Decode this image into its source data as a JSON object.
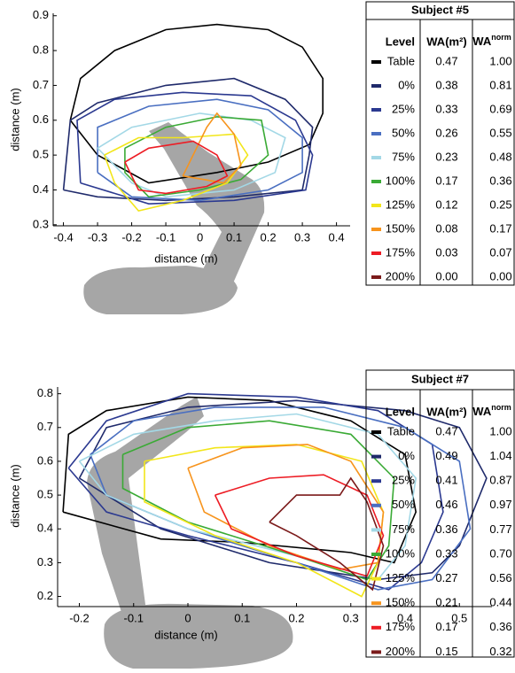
{
  "chart_data": [
    {
      "type": "line",
      "x_label": "distance (m)",
      "y_label": "distance (m)",
      "xlim": [
        -0.43,
        0.44
      ],
      "ylim": [
        0.297,
        0.907
      ],
      "xticks": [
        -0.4,
        -0.3,
        -0.2,
        -0.1,
        0,
        0.1,
        0.2,
        0.3,
        0.4
      ],
      "yticks": [
        0.3,
        0.4,
        0.5,
        0.6,
        0.7,
        0.8,
        0.9
      ],
      "series": [
        {
          "name": "Table",
          "color": "#000000",
          "x": [
            -0.38,
            -0.35,
            -0.25,
            -0.1,
            0.05,
            0.2,
            0.3,
            0.36,
            0.36,
            0.32,
            0.2,
            0.05,
            -0.15,
            -0.3,
            -0.38
          ],
          "y": [
            0.6,
            0.72,
            0.8,
            0.86,
            0.875,
            0.86,
            0.81,
            0.72,
            0.62,
            0.53,
            0.48,
            0.45,
            0.42,
            0.5,
            0.6
          ]
        },
        {
          "name": "0%",
          "color": "#1f2a6b",
          "x": [
            -0.4,
            -0.38,
            -0.3,
            -0.1,
            0.1,
            0.25,
            0.33,
            0.32,
            0.3,
            0.1,
            -0.1,
            -0.3,
            -0.4
          ],
          "y": [
            0.4,
            0.6,
            0.65,
            0.7,
            0.72,
            0.66,
            0.58,
            0.5,
            0.4,
            0.38,
            0.37,
            0.38,
            0.4
          ]
        },
        {
          "name": "25%",
          "color": "#2b3990",
          "x": [
            -0.35,
            -0.36,
            -0.25,
            -0.05,
            0.15,
            0.28,
            0.33,
            0.31,
            0.1,
            -0.15,
            -0.35
          ],
          "y": [
            0.42,
            0.6,
            0.66,
            0.68,
            0.67,
            0.6,
            0.5,
            0.4,
            0.37,
            0.36,
            0.42
          ]
        },
        {
          "name": "50%",
          "color": "#4a6fc1",
          "x": [
            -0.3,
            -0.3,
            -0.15,
            0.05,
            0.2,
            0.3,
            0.3,
            0.2,
            0,
            -0.2,
            -0.3
          ],
          "y": [
            0.45,
            0.58,
            0.64,
            0.66,
            0.63,
            0.55,
            0.45,
            0.4,
            0.37,
            0.38,
            0.45
          ]
        },
        {
          "name": "75%",
          "color": "#a3d8e6",
          "x": [
            -0.3,
            -0.2,
            0,
            0.15,
            0.25,
            0.22,
            0.1,
            -0.1,
            -0.2,
            -0.3
          ],
          "y": [
            0.52,
            0.58,
            0.62,
            0.6,
            0.55,
            0.45,
            0.4,
            0.38,
            0.42,
            0.52
          ]
        },
        {
          "name": "100%",
          "color": "#3aaa35",
          "x": [
            -0.22,
            -0.1,
            0.05,
            0.18,
            0.2,
            0.12,
            0,
            -0.15,
            -0.22,
            -0.22
          ],
          "y": [
            0.52,
            0.58,
            0.61,
            0.6,
            0.5,
            0.43,
            0.4,
            0.38,
            0.45,
            0.52
          ]
        },
        {
          "name": "125%",
          "color": "#f2e61a",
          "x": [
            -0.28,
            -0.18,
            -0.05,
            0.1,
            0.14,
            0.08,
            -0.05,
            -0.18,
            -0.25,
            -0.28
          ],
          "y": [
            0.5,
            0.55,
            0.55,
            0.56,
            0.5,
            0.42,
            0.37,
            0.34,
            0.42,
            0.5
          ]
        },
        {
          "name": "150%",
          "color": "#f7941d",
          "x": [
            -0.05,
            0.02,
            0.05,
            0.1,
            0.12,
            0.07,
            -0.05
          ],
          "y": [
            0.44,
            0.58,
            0.62,
            0.56,
            0.47,
            0.42,
            0.44
          ]
        },
        {
          "name": "175%",
          "color": "#ed1c24",
          "x": [
            -0.22,
            -0.15,
            -0.02,
            0.05,
            0.08,
            0.02,
            -0.1,
            -0.18,
            -0.22
          ],
          "y": [
            0.48,
            0.52,
            0.54,
            0.5,
            0.44,
            0.41,
            0.39,
            0.4,
            0.48
          ]
        },
        {
          "name": "200%",
          "color": "#7b1a1a",
          "x": [],
          "y": []
        }
      ],
      "table": {
        "title": "Subject #5",
        "headers": [
          "Level",
          "WA(m²)"
        ],
        "norm_header": "WA",
        "norm_header_sup": "norm",
        "rows": [
          [
            "0.47",
            "1.00"
          ],
          [
            "0.38",
            "0.81"
          ],
          [
            "0.33",
            "0.69"
          ],
          [
            "0.26",
            "0.55"
          ],
          [
            "0.23",
            "0.48"
          ],
          [
            "0.17",
            "0.36"
          ],
          [
            "0.12",
            "0.25"
          ],
          [
            "0.08",
            "0.17"
          ],
          [
            "0.03",
            "0.07"
          ],
          [
            "0.00",
            "0.00"
          ]
        ]
      }
    },
    {
      "type": "line",
      "x_label": "distance (m)",
      "y_label": "distance (m)",
      "xlim": [
        -0.24,
        0.56
      ],
      "ylim": [
        0.17,
        0.82
      ],
      "xticks": [
        -0.2,
        -0.1,
        0,
        0.1,
        0.2,
        0.3,
        0.4,
        0.5
      ],
      "yticks": [
        0.2,
        0.3,
        0.4,
        0.5,
        0.6,
        0.7,
        0.8
      ],
      "series": [
        {
          "name": "Table",
          "color": "#000000",
          "x": [
            -0.23,
            -0.22,
            -0.15,
            0,
            0.15,
            0.3,
            0.4,
            0.42,
            0.38,
            0.3,
            0.1,
            -0.05,
            -0.23
          ],
          "y": [
            0.45,
            0.68,
            0.75,
            0.79,
            0.78,
            0.72,
            0.62,
            0.45,
            0.3,
            0.33,
            0.36,
            0.37,
            0.45
          ]
        },
        {
          "name": "0%",
          "color": "#1f2a6b",
          "x": [
            -0.2,
            -0.15,
            0,
            0.2,
            0.4,
            0.5,
            0.55,
            0.5,
            0.45,
            0.35,
            0.15,
            -0.05,
            -0.2
          ],
          "y": [
            0.55,
            0.7,
            0.76,
            0.78,
            0.75,
            0.7,
            0.55,
            0.35,
            0.27,
            0.25,
            0.3,
            0.4,
            0.55
          ]
        },
        {
          "name": "25%",
          "color": "#2b3990",
          "x": [
            -0.22,
            -0.15,
            0,
            0.2,
            0.35,
            0.45,
            0.47,
            0.43,
            0.37,
            0.2,
            0,
            -0.15,
            -0.22
          ],
          "y": [
            0.58,
            0.72,
            0.8,
            0.79,
            0.75,
            0.65,
            0.45,
            0.3,
            0.22,
            0.3,
            0.38,
            0.45,
            0.58
          ]
        },
        {
          "name": "50%",
          "color": "#4a6fc1",
          "x": [
            -0.18,
            -0.1,
            0.05,
            0.25,
            0.4,
            0.5,
            0.52,
            0.45,
            0.35,
            0.2,
            0,
            -0.15,
            -0.18
          ],
          "y": [
            0.62,
            0.72,
            0.76,
            0.76,
            0.7,
            0.6,
            0.4,
            0.25,
            0.22,
            0.3,
            0.4,
            0.5,
            0.62
          ]
        },
        {
          "name": "75%",
          "color": "#a3d8e6",
          "x": [
            -0.2,
            -0.1,
            0.05,
            0.2,
            0.35,
            0.42,
            0.4,
            0.35,
            0.2,
            0,
            -0.15,
            -0.2
          ],
          "y": [
            0.6,
            0.68,
            0.72,
            0.74,
            0.68,
            0.55,
            0.35,
            0.25,
            0.32,
            0.4,
            0.5,
            0.6
          ]
        },
        {
          "name": "100%",
          "color": "#3aaa35",
          "x": [
            -0.12,
            0,
            0.15,
            0.3,
            0.38,
            0.37,
            0.33,
            0.2,
            0,
            -0.12,
            -0.12
          ],
          "y": [
            0.62,
            0.7,
            0.72,
            0.68,
            0.55,
            0.35,
            0.25,
            0.32,
            0.42,
            0.52,
            0.62
          ]
        },
        {
          "name": "125%",
          "color": "#f2e61a",
          "x": [
            -0.08,
            0.05,
            0.2,
            0.32,
            0.36,
            0.35,
            0.32,
            0.2,
            0.05,
            -0.08,
            -0.08
          ],
          "y": [
            0.6,
            0.64,
            0.65,
            0.6,
            0.45,
            0.3,
            0.2,
            0.3,
            0.38,
            0.48,
            0.6
          ]
        },
        {
          "name": "150%",
          "color": "#f7941d",
          "x": [
            0,
            0.1,
            0.22,
            0.3,
            0.36,
            0.35,
            0.28,
            0.15,
            0.03,
            0
          ],
          "y": [
            0.58,
            0.64,
            0.65,
            0.6,
            0.45,
            0.3,
            0.28,
            0.35,
            0.45,
            0.58
          ]
        },
        {
          "name": "175%",
          "color": "#ed1c24",
          "x": [
            0.05,
            0.15,
            0.25,
            0.33,
            0.36,
            0.33,
            0.2,
            0.08,
            0.05
          ],
          "y": [
            0.5,
            0.55,
            0.56,
            0.5,
            0.38,
            0.26,
            0.32,
            0.4,
            0.5
          ]
        },
        {
          "name": "200%",
          "color": "#7b1a1a",
          "x": [
            0.15,
            0.2,
            0.28,
            0.3,
            0.33,
            0.36,
            0.34,
            0.28,
            0.2,
            0.15
          ],
          "y": [
            0.42,
            0.5,
            0.5,
            0.55,
            0.48,
            0.35,
            0.22,
            0.3,
            0.38,
            0.42
          ]
        }
      ],
      "table": {
        "title": "Subject #7",
        "headers": [
          "Level",
          "WA(m²)"
        ],
        "norm_header": "WA",
        "norm_header_sup": "norm",
        "rows": [
          [
            "0.47",
            "1.00"
          ],
          [
            "0.49",
            "1.04"
          ],
          [
            "0.41",
            "0.87"
          ],
          [
            "0.46",
            "0.97"
          ],
          [
            "0.36",
            "0.77"
          ],
          [
            "0.33",
            "0.70"
          ],
          [
            "0.27",
            "0.56"
          ],
          [
            "0.21",
            "0.44"
          ],
          [
            "0.17",
            "0.36"
          ],
          [
            "0.15",
            "0.32"
          ]
        ]
      }
    }
  ]
}
